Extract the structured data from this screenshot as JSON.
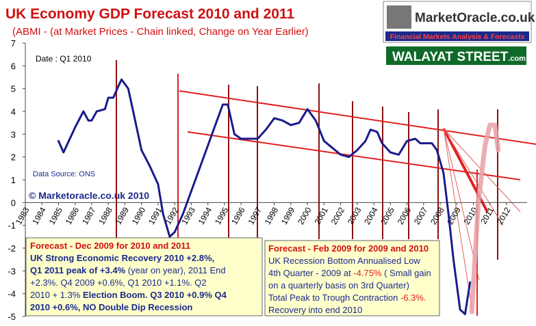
{
  "chart_data": {
    "type": "line",
    "title": "UK Economy GDP Forecast 2010 and 2011",
    "subtitle": "(ABMI -  (at Market Prices - Chain linked, Change on Year Earlier)",
    "annotations": {
      "date": "Date : Q1 2010",
      "source": "Data Source: ONS",
      "copyright": "© Marketoracle.co.uk  2010",
      "logo": "MarketOracle.co.uk",
      "logo_tagline": "Financial Markets Analysis & Forecasts",
      "banner": "WALAYAT STREET",
      "banner_suffix": ".com"
    },
    "boxes": [
      {
        "title": "Forecast - Dec  2009 for 2010 and 2011",
        "lines": [
          [
            {
              "text": "UK Strong Economic Recovery 2010 +2.8%,",
              "bold": true
            }
          ],
          [
            {
              "text": "Q1 2011 peak of +3.4%",
              "bold": true
            },
            {
              "text": " (year on year), 2011 End"
            }
          ],
          [
            {
              "text": "+2.3%. Q4 2009 +0.6%, Q1 2010 +1.1%. Q2"
            }
          ],
          [
            {
              "text": "2010 + 1.3% "
            },
            {
              "text": "Election Boom. Q3 2010 +0.9% Q4",
              "bold": true
            }
          ],
          [
            {
              "text": "2010 +0.6%, NO Double Dip Recession",
              "bold": true
            }
          ]
        ]
      },
      {
        "title": "Forecast - Feb  2009 for 2009 and 2010",
        "lines": [
          [
            {
              "text": "UK Recession Bottom  Annualised Low"
            }
          ],
          [
            {
              "text": "4th Quarter - 2009 at "
            },
            {
              "text": "-4.75%",
              "color": "#e02020"
            },
            {
              "text": " ( Small gain"
            }
          ],
          [
            {
              "text": "on a quarterly basis on 3rd Quarter)"
            }
          ],
          [
            {
              "text": "Total Peak to Trough Contraction "
            },
            {
              "text": "-6.3%.",
              "color": "#e02020"
            }
          ],
          [
            {
              "text": "Recovery into end 2010"
            }
          ]
        ]
      }
    ],
    "series": [
      {
        "color": "#1a1a8c",
        "x": [
          1985,
          1985.3,
          1986,
          1986.5,
          1986.8,
          1987,
          1987.3,
          1987.8,
          1988,
          1988.3,
          1988.6,
          1988.8,
          1989.2,
          1989.5,
          1990,
          1990.5,
          1991,
          1991.3,
          1991.7,
          1992,
          1992.5,
          1993,
          1993.5,
          1994,
          1994.5,
          1994.9,
          1995.2,
          1995.6,
          1996,
          1996.5,
          1997,
          1997.5,
          1998,
          1998.5,
          1999,
          1999.5,
          2000,
          2000.5,
          2001,
          2001.5,
          2002,
          2002.5,
          2003,
          2003.5,
          2003.8,
          2004.2,
          2004.5,
          2005,
          2005.5,
          2006,
          2006.5,
          2006.8,
          2007.5,
          2007.8,
          2008.2,
          2008.5,
          2008.8,
          2009.2,
          2009.5,
          2009.8
        ],
        "values": [
          2.7,
          2.2,
          3.3,
          4.0,
          3.6,
          3.6,
          4.0,
          4.1,
          4.6,
          4.6,
          5.1,
          5.4,
          5.0,
          4.0,
          2.3,
          1.6,
          0.8,
          -0.5,
          -1.5,
          -1.3,
          -0.5,
          0.5,
          1.5,
          2.5,
          3.5,
          4.3,
          4.3,
          3.0,
          2.8,
          2.8,
          2.8,
          3.2,
          3.7,
          3.6,
          3.4,
          3.5,
          4.1,
          3.6,
          2.7,
          2.4,
          2.1,
          2.0,
          2.3,
          2.7,
          3.2,
          3.1,
          2.6,
          2.2,
          2.1,
          2.7,
          2.8,
          2.6,
          2.6,
          2.3,
          1.3,
          -0.5,
          -2.5,
          -4.7,
          -4.9,
          -3.5
        ]
      },
      {
        "color": "#e8a0a8",
        "x": [
          2009.9,
          2010.3,
          2010.7,
          2011,
          2011.3,
          2011.5
        ],
        "values": [
          -4.8,
          0,
          2.5,
          3.4,
          3.4,
          2.3
        ]
      }
    ],
    "xlim": [
      1983,
      2012
    ],
    "xticks": [
      1983,
      1984,
      1985,
      1986,
      1987,
      1988,
      1989,
      1990,
      1991,
      1992,
      1993,
      1994,
      1995,
      1996,
      1997,
      1998,
      1999,
      2000,
      2001,
      2002,
      2003,
      2004,
      2005,
      2006,
      2007,
      2008,
      2009,
      2010,
      2011,
      2012
    ],
    "ylim": [
      -5,
      7
    ],
    "yticks": [
      -5,
      -4,
      -3,
      -2,
      -1,
      0,
      1,
      2,
      3,
      4,
      5,
      6,
      7
    ]
  }
}
